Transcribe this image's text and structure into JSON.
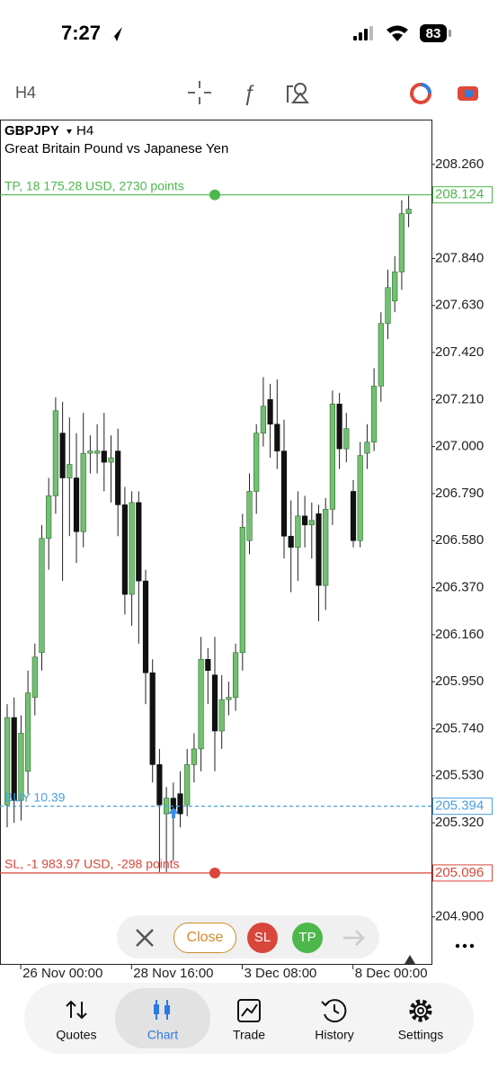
{
  "status_bar": {
    "time": "7:27",
    "battery": "83"
  },
  "toolbar": {
    "timeframe": "H4"
  },
  "chart_data": {
    "type": "candlestick",
    "title": "GBPJPY",
    "timeframe": "H4",
    "subtitle": "Great Britain Pound vs Japanese Yen",
    "up_color": "#72c172",
    "down_color": "#111111",
    "categories": [
      null,
      null,
      null,
      "26 Nov 00:00",
      null,
      null,
      null,
      null,
      null,
      null,
      null,
      null,
      null,
      null,
      null,
      null,
      null,
      null,
      null,
      "28 Nov 16:00",
      null,
      null,
      null,
      null,
      null,
      null,
      null,
      null,
      null,
      null,
      null,
      null,
      null,
      null,
      null,
      "3 Dec 08:00",
      null,
      null,
      null,
      null,
      null,
      null,
      null,
      null,
      null,
      null,
      null,
      null,
      null,
      null,
      null,
      "8 Dec 00:00",
      null,
      null,
      null,
      null,
      null,
      null,
      null
    ],
    "open": [
      205.4,
      205.79,
      205.42,
      205.55,
      205.88,
      206.08,
      206.59,
      206.78,
      207.06,
      206.86,
      206.86,
      206.62,
      206.97,
      206.97,
      206.98,
      206.93,
      206.98,
      206.74,
      206.34,
      206.75,
      206.4,
      205.99,
      205.58,
      205.36,
      205.43,
      205.45,
      205.4,
      205.58,
      205.65,
      206.05,
      205.98,
      205.73,
      205.87,
      205.88,
      206.08,
      206.58,
      206.8,
      207.06,
      207.21,
      207.1,
      206.98,
      206.6,
      206.55,
      206.69,
      206.65,
      206.7,
      206.38,
      206.72,
      207.19,
      206.99,
      206.8,
      206.58,
      206.97,
      207.02,
      207.27,
      207.55,
      207.65,
      207.78,
      208.04
    ],
    "high": [
      205.85,
      205.88,
      205.8,
      206.0,
      206.12,
      206.65,
      206.86,
      207.22,
      207.2,
      207.13,
      207.06,
      207.15,
      207.05,
      207.1,
      207.15,
      207.05,
      207.08,
      206.82,
      206.8,
      206.8,
      206.45,
      206.05,
      205.65,
      205.48,
      205.5,
      205.55,
      205.65,
      205.72,
      206.15,
      206.1,
      206.15,
      205.98,
      205.95,
      206.12,
      206.7,
      206.88,
      207.1,
      207.31,
      207.28,
      207.3,
      207.12,
      206.76,
      206.8,
      206.78,
      206.75,
      206.74,
      206.77,
      207.25,
      207.24,
      207.15,
      206.85,
      207.02,
      207.1,
      207.35,
      207.6,
      207.79,
      207.85,
      208.1,
      208.12
    ],
    "low": [
      205.3,
      205.32,
      205.33,
      205.45,
      205.8,
      206.0,
      206.45,
      206.7,
      206.4,
      206.6,
      206.48,
      206.55,
      206.88,
      206.88,
      206.8,
      206.75,
      206.6,
      206.25,
      206.2,
      206.12,
      205.85,
      205.5,
      205.1,
      205.1,
      205.15,
      205.3,
      205.35,
      205.5,
      205.55,
      205.85,
      205.55,
      205.65,
      205.8,
      205.82,
      206.0,
      206.52,
      206.7,
      207.0,
      206.95,
      206.9,
      206.5,
      206.35,
      206.4,
      206.55,
      206.5,
      206.22,
      206.27,
      206.65,
      206.9,
      206.93,
      206.55,
      206.55,
      206.9,
      206.98,
      207.2,
      207.48,
      207.6,
      207.7,
      207.98
    ],
    "close": [
      205.79,
      205.42,
      205.72,
      205.9,
      206.06,
      206.59,
      206.78,
      207.16,
      206.86,
      206.92,
      206.62,
      206.97,
      206.98,
      206.98,
      206.93,
      206.95,
      206.74,
      206.34,
      206.75,
      206.4,
      205.99,
      205.58,
      205.4,
      205.43,
      205.38,
      205.36,
      205.58,
      205.65,
      206.05,
      206.0,
      205.73,
      205.87,
      205.88,
      206.08,
      206.64,
      206.8,
      207.06,
      207.18,
      207.1,
      206.98,
      206.6,
      206.55,
      206.69,
      206.65,
      206.67,
      206.38,
      206.72,
      207.19,
      206.99,
      207.08,
      206.58,
      206.96,
      207.02,
      207.27,
      207.55,
      207.71,
      207.78,
      208.04,
      208.06
    ],
    "ylim": [
      204.69,
      208.46
    ],
    "yticks": [
      {
        "value": 208.26,
        "label": "208.260"
      },
      {
        "value": 207.84,
        "label": "207.840"
      },
      {
        "value": 207.63,
        "label": "207.630"
      },
      {
        "value": 207.42,
        "label": "207.420"
      },
      {
        "value": 207.21,
        "label": "207.210"
      },
      {
        "value": 207.0,
        "label": "207.000"
      },
      {
        "value": 206.79,
        "label": "206.790"
      },
      {
        "value": 206.58,
        "label": "206.580"
      },
      {
        "value": 206.37,
        "label": "206.370"
      },
      {
        "value": 206.16,
        "label": "206.160"
      },
      {
        "value": 205.95,
        "label": "205.950"
      },
      {
        "value": 205.74,
        "label": "205.740"
      },
      {
        "value": 205.53,
        "label": "205.530"
      },
      {
        "value": 205.32,
        "label": "205.320"
      },
      {
        "value": 204.9,
        "label": "204.900"
      }
    ],
    "levels": [
      {
        "name": "TP, 18 175.28 USD, 2730 points",
        "value": 208.124,
        "color": "#4cb84c"
      },
      {
        "name": "BUY 10.39",
        "value": 205.394,
        "color": "#4a9fe0"
      },
      {
        "name": "SL, -1 983.97 USD, -298 points",
        "value": 205.096,
        "color": "#d9463b"
      }
    ]
  },
  "trade_bar": {
    "close": "Close",
    "sl": "SL",
    "tp": "TP"
  },
  "nav": {
    "items": [
      "Quotes",
      "Chart",
      "Trade",
      "History",
      "Settings"
    ]
  }
}
